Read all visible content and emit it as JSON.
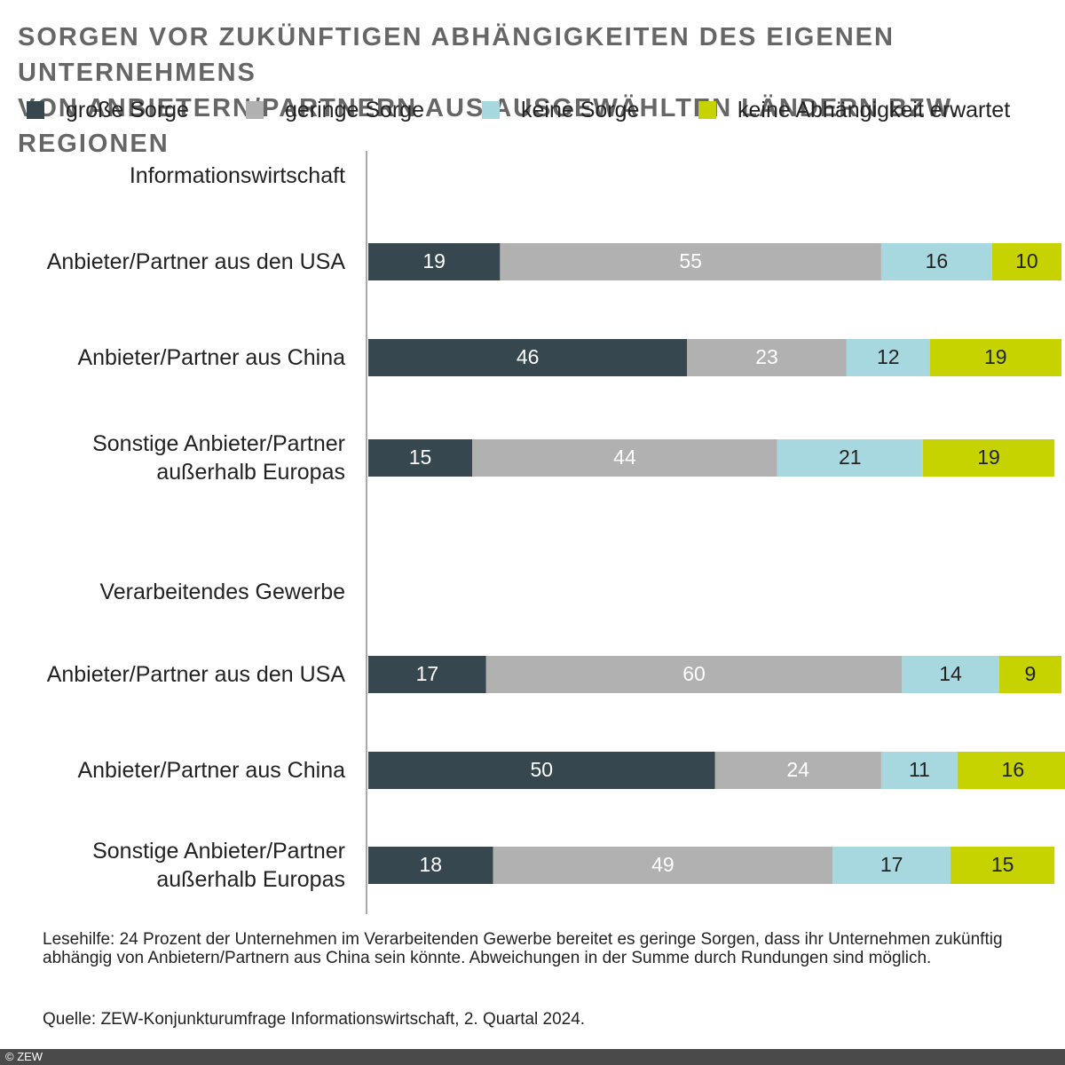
{
  "chart_data": {
    "type": "stacked_bar_horizontal",
    "title": "SORGEN VOR ZUKÜNFTIGEN ABHÄNGIGKEITEN DES EIGENEN UNTERNEHMENS\nVON ANBIETERN/PARTNERN AUS AUSGEWÄHLTEN LÄNDERN BZW. REGIONEN",
    "categories": [
      "Informationswirtschaft",
      "Anbieter/Partner aus den USA",
      "Anbieter/Partner aus China",
      "Sonstige Anbieter/Partner\naußerhalb Europas",
      "Verarbeitendes Gewerbe",
      "Anbieter/Partner aus den USA",
      "Anbieter/Partner aus China",
      "Sonstige Anbieter/Partner\naußerhalb Europas"
    ],
    "series": [
      {
        "name": "große Sorge",
        "color": "#37474f",
        "values": [
          null,
          19,
          46,
          15,
          null,
          17,
          50,
          18
        ]
      },
      {
        "name": "geringe Sorge",
        "color": "#b2b1b2",
        "values": [
          null,
          55,
          23,
          44,
          null,
          60,
          24,
          49
        ]
      },
      {
        "name": "keine Sorge",
        "color": "#a8d8df",
        "values": [
          null,
          16,
          12,
          21,
          null,
          14,
          11,
          17
        ]
      },
      {
        "name": "keine Abhängigkeit erwartet",
        "color": "#c6d300",
        "values": [
          null,
          10,
          19,
          19,
          null,
          9,
          16,
          15
        ]
      }
    ],
    "xlim": [
      0,
      100
    ],
    "note": "Lesehilfe: 24 Prozent der Unternehmen im Verarbeitenden Gewerbe bereitet es geringe Sorgen, dass ihr Unternehmen zukünftig abhängig von Anbietern/Partnern aus China sein könnte. Abweichungen in der Summe durch Rundungen sind möglich.",
    "source": "Quelle: ZEW-Konjunkturumfrage Informationswirtschaft, 2. Quartal 2024.",
    "copyright": "© ZEW"
  }
}
